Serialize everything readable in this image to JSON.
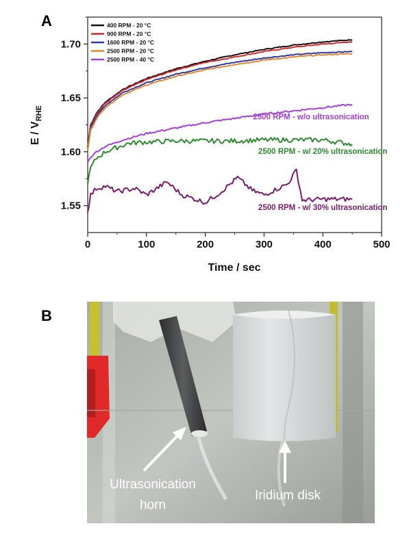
{
  "panels": {
    "a": "A",
    "b": "B"
  },
  "chart_data": {
    "type": "line",
    "xlabel": "Time / sec",
    "ylabel": "E / V",
    "ylabel_subscript": "RHE",
    "xlim": [
      0,
      500
    ],
    "ylim": [
      1.525,
      1.725
    ],
    "xticks": [
      0,
      100,
      200,
      300,
      400,
      500
    ],
    "yticks": [
      1.55,
      1.6,
      1.65,
      1.7
    ],
    "ytick_labels": [
      "1.55",
      "1.60",
      "1.65",
      "1.70"
    ],
    "grid": false,
    "legend_position": "top-left",
    "series": [
      {
        "name": "400   RPM - 20 °C",
        "color": "#111111",
        "x": [
          0,
          5,
          15,
          30,
          60,
          100,
          150,
          200,
          250,
          300,
          350,
          400,
          450
        ],
        "y": [
          1.604,
          1.625,
          1.636,
          1.646,
          1.658,
          1.668,
          1.677,
          1.684,
          1.69,
          1.695,
          1.699,
          1.702,
          1.704
        ]
      },
      {
        "name": "900   RPM - 20 °C",
        "color": "#d42a2a",
        "x": [
          0,
          5,
          15,
          30,
          60,
          100,
          150,
          200,
          250,
          300,
          350,
          400,
          450
        ],
        "y": [
          1.604,
          1.624,
          1.635,
          1.645,
          1.657,
          1.667,
          1.676,
          1.683,
          1.688,
          1.693,
          1.697,
          1.7,
          1.702
        ]
      },
      {
        "name": "1600 RPM - 20 °C",
        "color": "#2b3aa8",
        "x": [
          0,
          5,
          15,
          30,
          60,
          100,
          150,
          200,
          250,
          300,
          350,
          400,
          450
        ],
        "y": [
          1.603,
          1.622,
          1.633,
          1.643,
          1.655,
          1.664,
          1.672,
          1.678,
          1.683,
          1.687,
          1.69,
          1.692,
          1.693
        ]
      },
      {
        "name": "2500 RPM - 20 °C",
        "color": "#e0892a",
        "x": [
          0,
          5,
          15,
          30,
          60,
          100,
          150,
          200,
          250,
          300,
          350,
          400,
          450
        ],
        "y": [
          1.601,
          1.62,
          1.631,
          1.641,
          1.653,
          1.662,
          1.67,
          1.676,
          1.681,
          1.685,
          1.688,
          1.69,
          1.691
        ]
      },
      {
        "name": "2500 RPM - 40 °C",
        "color": "#a23fd8",
        "x": [
          0,
          5,
          15,
          30,
          60,
          100,
          150,
          200,
          250,
          300,
          350,
          400,
          450
        ],
        "y": [
          1.59,
          1.595,
          1.6,
          1.605,
          1.611,
          1.617,
          1.622,
          1.627,
          1.631,
          1.635,
          1.638,
          1.641,
          1.644
        ]
      },
      {
        "name": "2500 RPM - w/ 20% ultrasonication",
        "color": "#2e8b2e",
        "x": [
          0,
          5,
          15,
          30,
          50,
          70,
          100,
          150,
          200,
          250,
          300,
          350,
          400,
          450
        ],
        "y": [
          1.57,
          1.585,
          1.594,
          1.6,
          1.604,
          1.608,
          1.609,
          1.61,
          1.61,
          1.61,
          1.611,
          1.611,
          1.611,
          1.607
        ]
      },
      {
        "name": "2500 RPM - w/ 30% ultrasonication",
        "color": "#7a1a6e",
        "x": [
          0,
          5,
          15,
          30,
          50,
          80,
          100,
          135,
          160,
          200,
          225,
          255,
          280,
          300,
          340,
          355,
          365,
          400,
          450
        ],
        "y": [
          1.544,
          1.56,
          1.566,
          1.568,
          1.563,
          1.566,
          1.56,
          1.572,
          1.56,
          1.553,
          1.562,
          1.576,
          1.564,
          1.56,
          1.57,
          1.583,
          1.555,
          1.556,
          1.556
        ]
      }
    ],
    "legend_entries": [
      "400   RPM - 20 °C",
      "900   RPM - 20 °C",
      "1600 RPM - 20 °C",
      "2500 RPM - 20 °C",
      "2500 RPM - 40 °C"
    ],
    "annotations": [
      {
        "text": "2500 RPM - w/o ultrasonication",
        "color": "#a23fd8",
        "x": 380,
        "y": 1.63
      },
      {
        "text": "2500 RPM - w/ 20% ultrasonication",
        "color": "#2e8b2e",
        "x": 400,
        "y": 1.598
      },
      {
        "text": "2500 RPM - w/ 30% ultrasonication",
        "color": "#7a1a6e",
        "x": 400,
        "y": 1.546
      }
    ]
  },
  "photo": {
    "labels": {
      "horn_line1": "Ultrasonication",
      "horn_line2": "horn",
      "disk": "Iridium disk"
    },
    "colors": {
      "background": "#b8bcb6",
      "sleeve": "#d8dcdc",
      "horn": "#4a4c4e",
      "clamp": "#e02a2a",
      "rod": "#c8c02a"
    }
  }
}
